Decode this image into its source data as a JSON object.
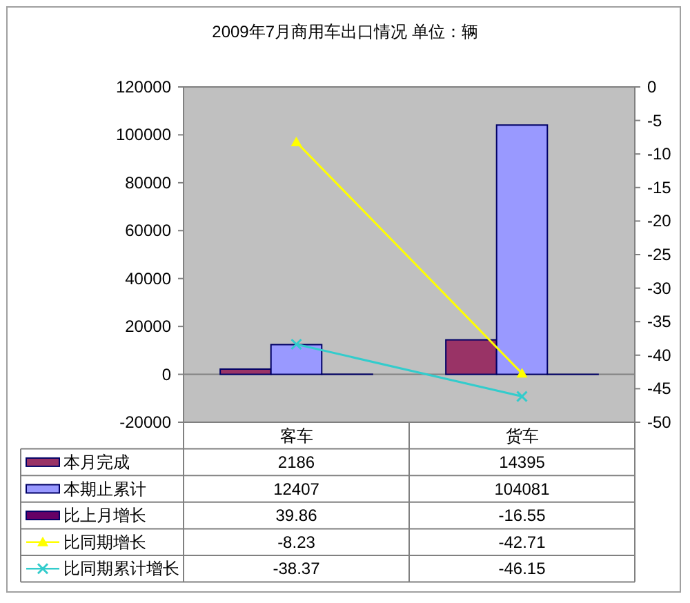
{
  "chart_data": {
    "type": "bar",
    "title": "2009年7月商用车出口情况 单位：辆",
    "categories": [
      "客车",
      "货车"
    ],
    "series": [
      {
        "name": "本月完成",
        "color": "#993366",
        "values": [
          2186,
          14395
        ]
      },
      {
        "name": "本期止累计",
        "color": "#9999ff",
        "values": [
          12407,
          104081
        ]
      },
      {
        "name": "比上月增长",
        "color": "#660066",
        "values": [
          39.86,
          -16.55
        ]
      },
      {
        "name": "比同期增长",
        "type": "line",
        "axis": "y2",
        "color": "#ffff00",
        "marker": "triangle",
        "values": [
          -8.23,
          -42.71
        ]
      },
      {
        "name": "比同期累计增长",
        "type": "line",
        "axis": "y2",
        "color": "#33cccc",
        "marker": "cross",
        "values": [
          -38.37,
          -46.15
        ]
      }
    ],
    "ylim": [
      -20000,
      120000
    ],
    "yticks": [
      -20000,
      0,
      20000,
      40000,
      60000,
      80000,
      100000,
      120000
    ],
    "y2lim": [
      -50,
      0
    ],
    "y2ticks": [
      -50,
      -45,
      -40,
      -35,
      -30,
      -25,
      -20,
      -15,
      -10,
      -5,
      0
    ],
    "data_labels": true,
    "legend": "bottom"
  }
}
